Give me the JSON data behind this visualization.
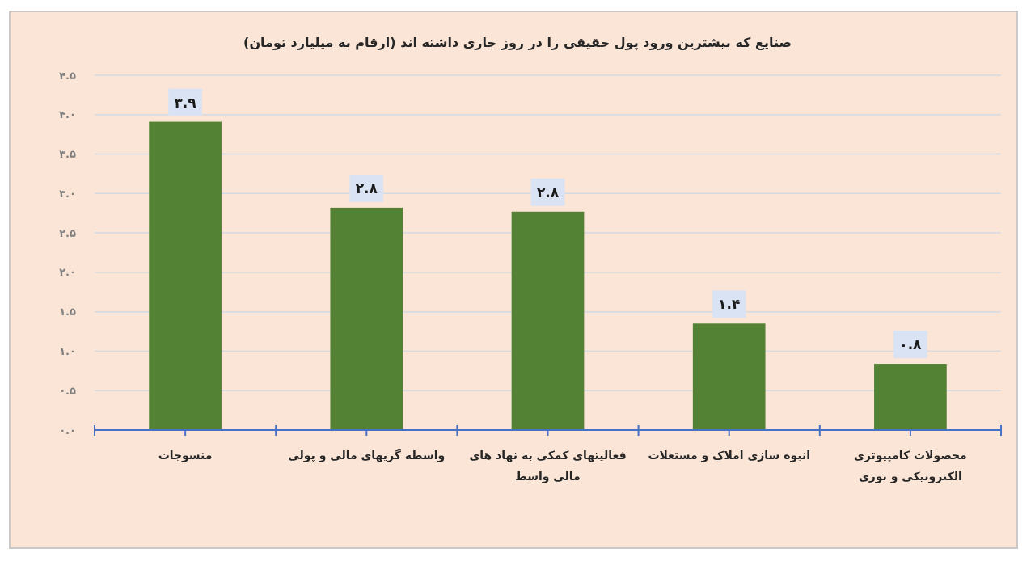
{
  "chart_data": {
    "type": "bar",
    "title": "صنایع که بیشترین ورود پول حقیقی را در روز جاری داشته اند (ارقام به میلیارد تومان)",
    "categories": [
      "منسوجات",
      "واسطه گریهای مالی و پولی",
      "فعالیتهای کمکی به نهاد های مالی واسط",
      "انبوه سازی املاک و مستغلات",
      "محصولات کامپیوتری الکترونیکی و نوری"
    ],
    "values": [
      3.91,
      2.82,
      2.77,
      1.35,
      0.84
    ],
    "color": "#548235",
    "value_labels": [
      "۳.۹",
      "۲.۸",
      "۲.۸",
      "۱.۴",
      "۰.۸"
    ],
    "ylim": [
      0,
      4.5
    ],
    "yticks": [
      {
        "value": 0,
        "label": "۰.۰"
      },
      {
        "value": 0.5,
        "label": "۰.۵"
      },
      {
        "value": 1,
        "label": "۱.۰"
      },
      {
        "value": 1.5,
        "label": "۱.۵"
      },
      {
        "value": 2,
        "label": "۲.۰"
      },
      {
        "value": 2.5,
        "label": "۲.۵"
      },
      {
        "value": 3,
        "label": "۳.۰"
      },
      {
        "value": 3.5,
        "label": "۳.۵"
      },
      {
        "value": 4,
        "label": "۴.۰"
      },
      {
        "value": 4.5,
        "label": "۴.۵"
      }
    ],
    "grid": "y"
  }
}
